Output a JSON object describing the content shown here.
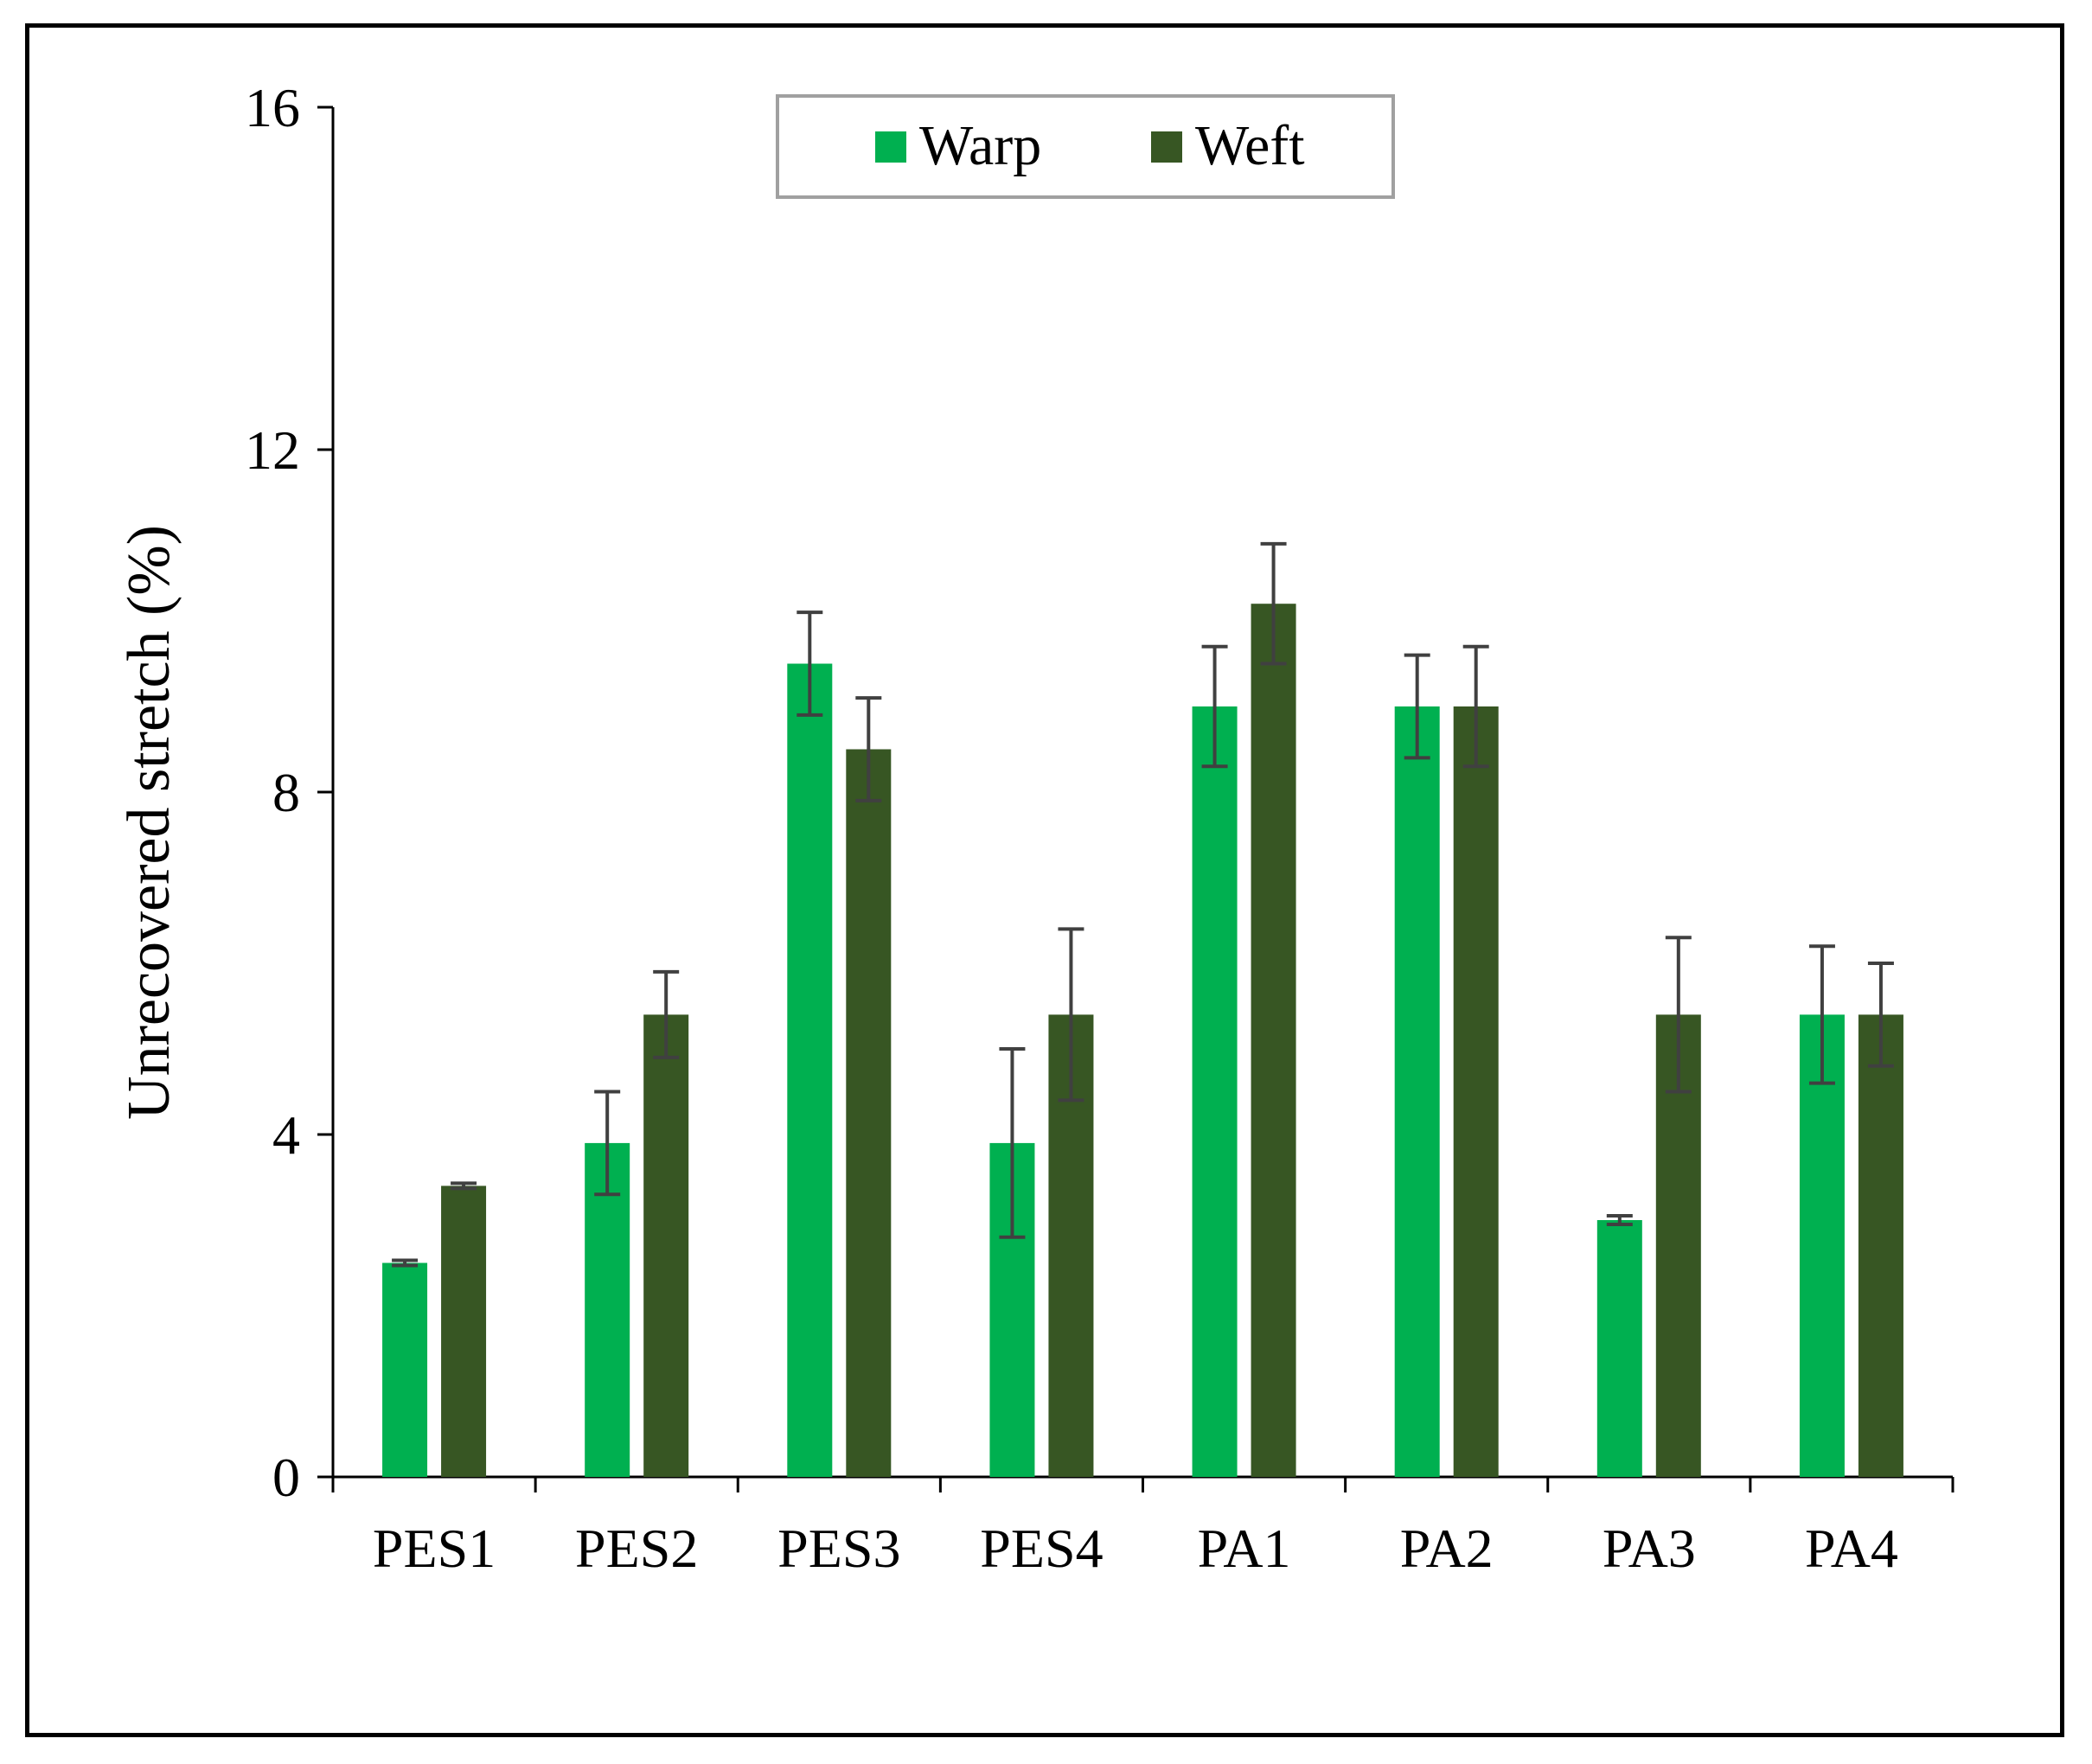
{
  "chart_data": {
    "type": "bar",
    "title": "",
    "xlabel": "",
    "ylabel": "Unrecovered stretch (%)",
    "ylim": [
      0,
      16
    ],
    "yticks": [
      0,
      4,
      8,
      12,
      16
    ],
    "categories": [
      "PES1",
      "PES2",
      "PES3",
      "PES4",
      "PA1",
      "PA2",
      "PA3",
      "PA4"
    ],
    "series": [
      {
        "name": "Warp",
        "color": "#00b050",
        "values": [
          2.5,
          3.9,
          9.5,
          3.9,
          9.0,
          9.0,
          3.0,
          5.4
        ],
        "errors": [
          0.03,
          0.6,
          0.6,
          1.1,
          0.7,
          0.6,
          0.05,
          0.8
        ]
      },
      {
        "name": "Weft",
        "color": "#375623",
        "values": [
          3.4,
          5.4,
          8.5,
          5.4,
          10.2,
          9.0,
          5.4,
          5.4
        ],
        "errors": [
          0.03,
          0.5,
          0.6,
          1.0,
          0.7,
          0.7,
          0.9,
          0.6
        ]
      }
    ],
    "legend": {
      "position": "top-center",
      "entries": [
        "Warp",
        "Weft"
      ]
    },
    "error_bar_color": "#404040",
    "grid": false
  }
}
